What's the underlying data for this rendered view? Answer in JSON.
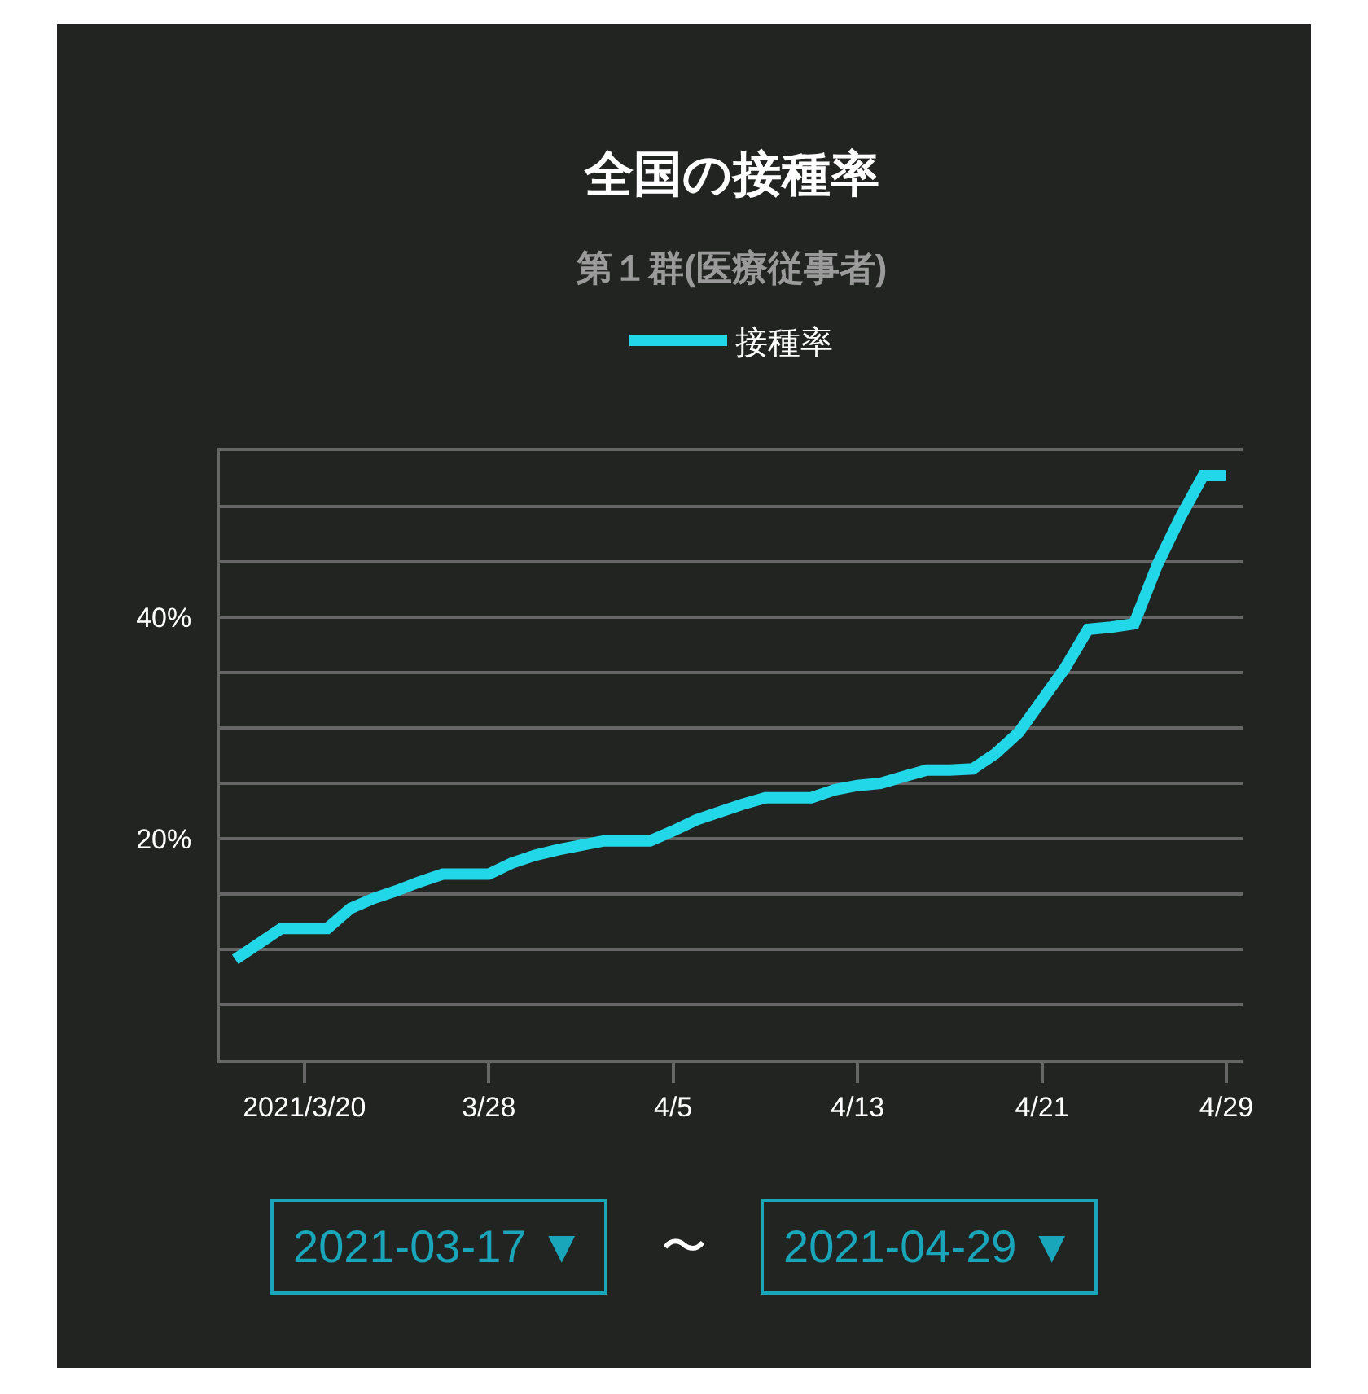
{
  "chart_data": {
    "type": "line",
    "title": "全国の接種率",
    "subtitle": "第１群(医療従事者)",
    "x": [
      "2021-03-17",
      "2021-03-18",
      "2021-03-19",
      "2021-03-20",
      "2021-03-21",
      "2021-03-22",
      "2021-03-23",
      "2021-03-24",
      "2021-03-25",
      "2021-03-26",
      "2021-03-27",
      "2021-03-28",
      "2021-03-29",
      "2021-03-30",
      "2021-03-31",
      "2021-04-01",
      "2021-04-02",
      "2021-04-03",
      "2021-04-04",
      "2021-04-05",
      "2021-04-06",
      "2021-04-07",
      "2021-04-08",
      "2021-04-09",
      "2021-04-10",
      "2021-04-11",
      "2021-04-12",
      "2021-04-13",
      "2021-04-14",
      "2021-04-15",
      "2021-04-16",
      "2021-04-17",
      "2021-04-18",
      "2021-04-19",
      "2021-04-20",
      "2021-04-21",
      "2021-04-22",
      "2021-04-23",
      "2021-04-24",
      "2021-04-25",
      "2021-04-26",
      "2021-04-27",
      "2021-04-28",
      "2021-04-29"
    ],
    "series": [
      {
        "name": "接種率",
        "color": "#22d8e8",
        "values": [
          9.1,
          10.5,
          11.9,
          11.9,
          11.9,
          13.7,
          14.6,
          15.3,
          16.1,
          16.8,
          16.8,
          16.8,
          17.8,
          18.5,
          19.0,
          19.4,
          19.8,
          19.8,
          19.8,
          20.7,
          21.7,
          22.4,
          23.1,
          23.7,
          23.7,
          23.7,
          24.4,
          24.8,
          25.0,
          25.6,
          26.2,
          26.2,
          26.3,
          27.7,
          29.6,
          32.5,
          35.4,
          38.9,
          39.1,
          39.4,
          44.7,
          49.0,
          52.8,
          52.8
        ]
      }
    ],
    "xlim": [
      "2021-03-16T08:00",
      "2021-04-29T17:00"
    ],
    "xticks": [
      {
        "value": "2021-03-20",
        "label": "2021/3/20"
      },
      {
        "value": "2021-03-28",
        "label": "3/28"
      },
      {
        "value": "2021-04-05",
        "label": "4/5"
      },
      {
        "value": "2021-04-13",
        "label": "4/13"
      },
      {
        "value": "2021-04-21",
        "label": "4/21"
      },
      {
        "value": "2021-04-29",
        "label": "4/29"
      }
    ],
    "ylim": [
      0,
      55
    ],
    "yticks": [
      {
        "value": 5,
        "label": null
      },
      {
        "value": 10,
        "label": null
      },
      {
        "value": 15,
        "label": null
      },
      {
        "value": 20,
        "label": "20%"
      },
      {
        "value": 25,
        "label": null
      },
      {
        "value": 30,
        "label": null
      },
      {
        "value": 35,
        "label": null
      },
      {
        "value": 40,
        "label": "40%"
      },
      {
        "value": 45,
        "label": null
      },
      {
        "value": 50,
        "label": null
      },
      {
        "value": 55,
        "label": null
      }
    ],
    "grid": "y",
    "legend": "top",
    "marker": "none",
    "annotations": [
      "2021-03-17 ▼",
      "〜",
      "2021-04-29 ▼"
    ]
  }
}
